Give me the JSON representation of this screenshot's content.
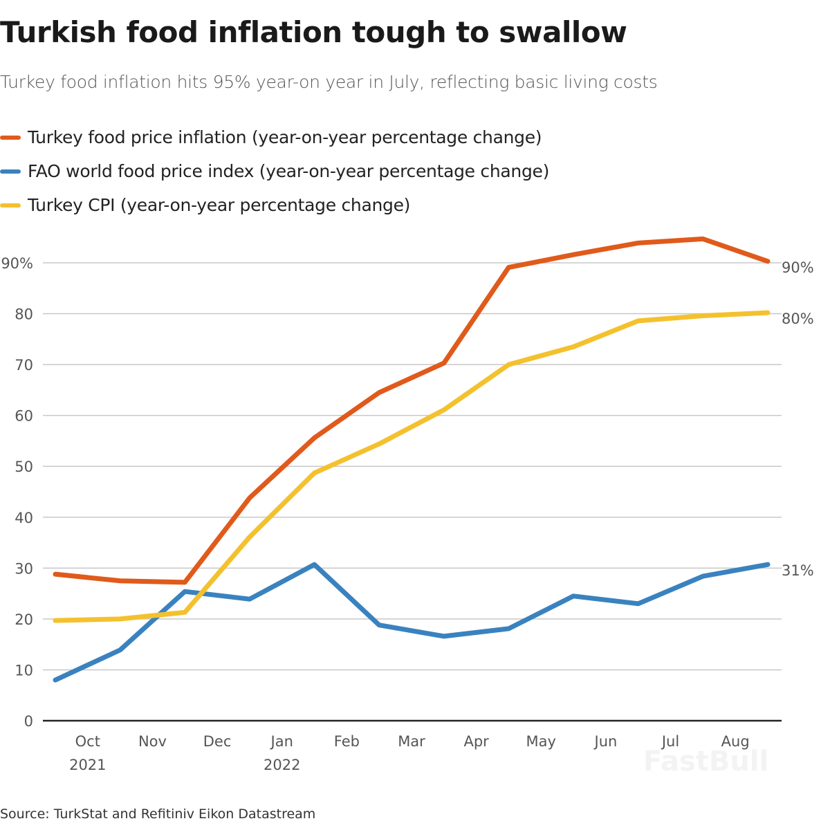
{
  "title": "Turkish food inflation tough to swallow",
  "subtitle": "Turkey food inflation hits 95% year-on year in July, reflecting basic living costs",
  "source": "Source: TurkStat and Refitiniv Eikon Datastream",
  "watermark": "FastBull",
  "chart_data": {
    "type": "line",
    "title": "Turkish food inflation tough to swallow",
    "x": [
      "2021-09",
      "2021-10",
      "2021-11",
      "2021-12",
      "2022-01",
      "2022-02",
      "2022-03",
      "2022-04",
      "2022-05",
      "2022-06",
      "2022-07",
      "2022-08"
    ],
    "x_tick_labels": [
      {
        "month": "Oct",
        "year": "2021"
      },
      {
        "month": "Nov",
        "year": ""
      },
      {
        "month": "Dec",
        "year": ""
      },
      {
        "month": "Jan",
        "year": "2022"
      },
      {
        "month": "Feb",
        "year": ""
      },
      {
        "month": "Mar",
        "year": ""
      },
      {
        "month": "Apr",
        "year": ""
      },
      {
        "month": "May",
        "year": ""
      },
      {
        "month": "Jun",
        "year": ""
      },
      {
        "month": "Jul",
        "year": ""
      },
      {
        "month": "Aug",
        "year": ""
      }
    ],
    "y_ticks": [
      "0",
      "10",
      "20",
      "30",
      "40",
      "50",
      "60",
      "70",
      "80",
      "90%"
    ],
    "ylim": [
      0,
      90
    ],
    "grid": true,
    "legend": "top-left",
    "series": [
      {
        "name": "Turkey food price inflation (year-on-year percentage change)",
        "color": "#e05a1b",
        "values": [
          28.8,
          27.5,
          27.2,
          43.8,
          55.6,
          64.5,
          70.3,
          89.1,
          91.6,
          93.9,
          94.7,
          90.3
        ],
        "end_label": "90%"
      },
      {
        "name": "FAO world food price index (year-on-year percentage change)",
        "color": "#3a82bf",
        "values": [
          8.0,
          13.9,
          25.4,
          23.9,
          30.7,
          18.8,
          16.6,
          18.1,
          24.5,
          23.0,
          28.4,
          30.7
        ],
        "end_label": "31%"
      },
      {
        "name": "Turkey CPI (year-on-year percentage change)",
        "color": "#f4c12e",
        "values": [
          19.7,
          20.0,
          21.3,
          36.1,
          48.7,
          54.4,
          61.1,
          70.0,
          73.5,
          78.6,
          79.6,
          80.2
        ],
        "end_label": "80%"
      }
    ]
  }
}
